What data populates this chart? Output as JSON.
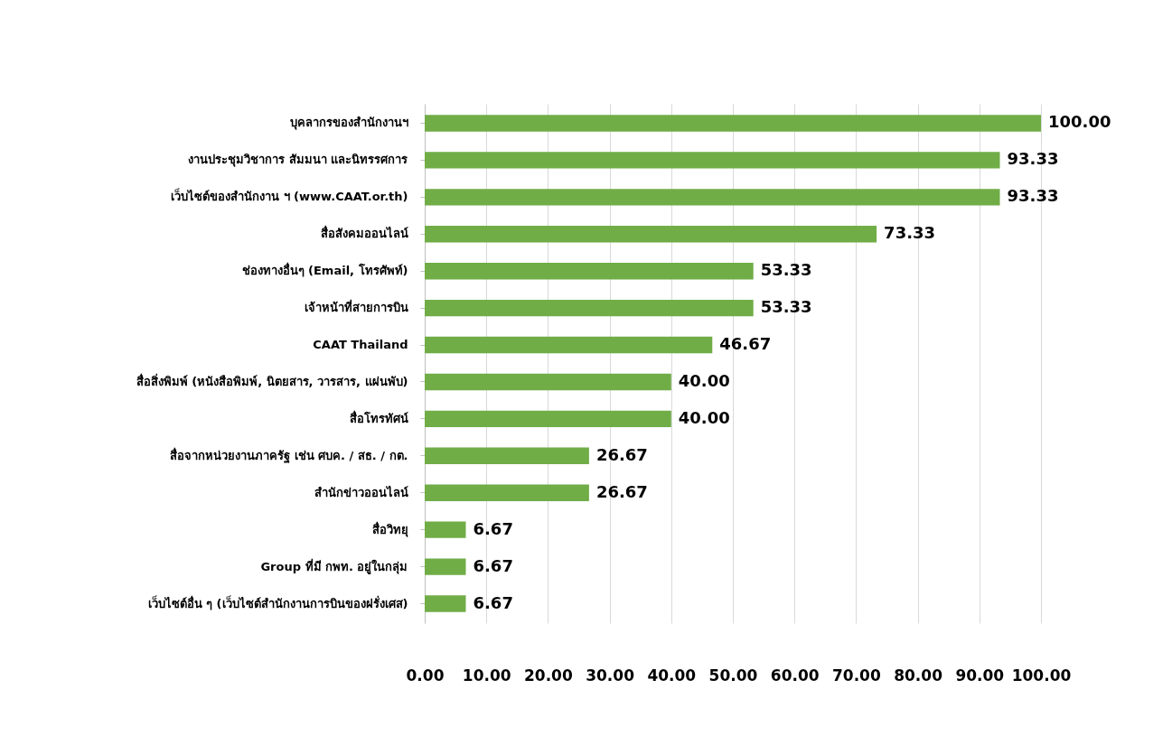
{
  "chart_data": {
    "type": "bar",
    "orientation": "horizontal",
    "categories": [
      "บุคลากรของสำนักงานฯ",
      "งานประชุมวิชาการ สัมมนา และนิทรรศการ",
      "เว็บไซต์ของสำนักงาน ฯ (www.CAAT.or.th)",
      "สื่อสังคมออนไลน์",
      "ช่องทางอื่นๆ (Email, โทรศัพท์)",
      "เจ้าหน้าที่สายการบิน",
      "CAAT Thailand",
      "สื่อสิ่งพิมพ์ (หนังสือพิมพ์, นิตยสาร, วารสาร, แผ่นพับ)",
      "สื่อโทรทัศน์",
      "สื่อจากหน่วยงานภาครัฐ เช่น ศบค. / สธ. / กต.",
      "สำนักข่าวออนไลน์",
      "สื่อวิทยุ",
      "Group ที่มี กพท. อยู่ในกลุ่ม",
      "เว็บไซต์อื่น ๆ (เว็บไซต์สำนักงานการบินของฝรั่งเศส)"
    ],
    "values": [
      100,
      93.33,
      93.33,
      73.33,
      53.33,
      53.33,
      46.67,
      40,
      40,
      26.67,
      26.67,
      6.67,
      6.67,
      6.67
    ],
    "value_labels": [
      "100.00",
      "93.33",
      "93.33",
      "73.33",
      "53.33",
      "53.33",
      "46.67",
      "40.00",
      "40.00",
      "26.67",
      "26.67",
      "6.67",
      "6.67",
      "6.67"
    ],
    "color": "#70ad47",
    "xlim": [
      0,
      100
    ],
    "xticks": [
      {
        "value": 0,
        "label": "0.00"
      },
      {
        "value": 10,
        "label": "10.00"
      },
      {
        "value": 20,
        "label": "20.00"
      },
      {
        "value": 30,
        "label": "30.00"
      },
      {
        "value": 40,
        "label": "40.00"
      },
      {
        "value": 50,
        "label": "50.00"
      },
      {
        "value": 60,
        "label": "60.00"
      },
      {
        "value": 70,
        "label": "70.00"
      },
      {
        "value": 80,
        "label": "80.00"
      },
      {
        "value": 90,
        "label": "90.00"
      },
      {
        "value": 100,
        "label": "100.00"
      }
    ],
    "grid": "x"
  }
}
